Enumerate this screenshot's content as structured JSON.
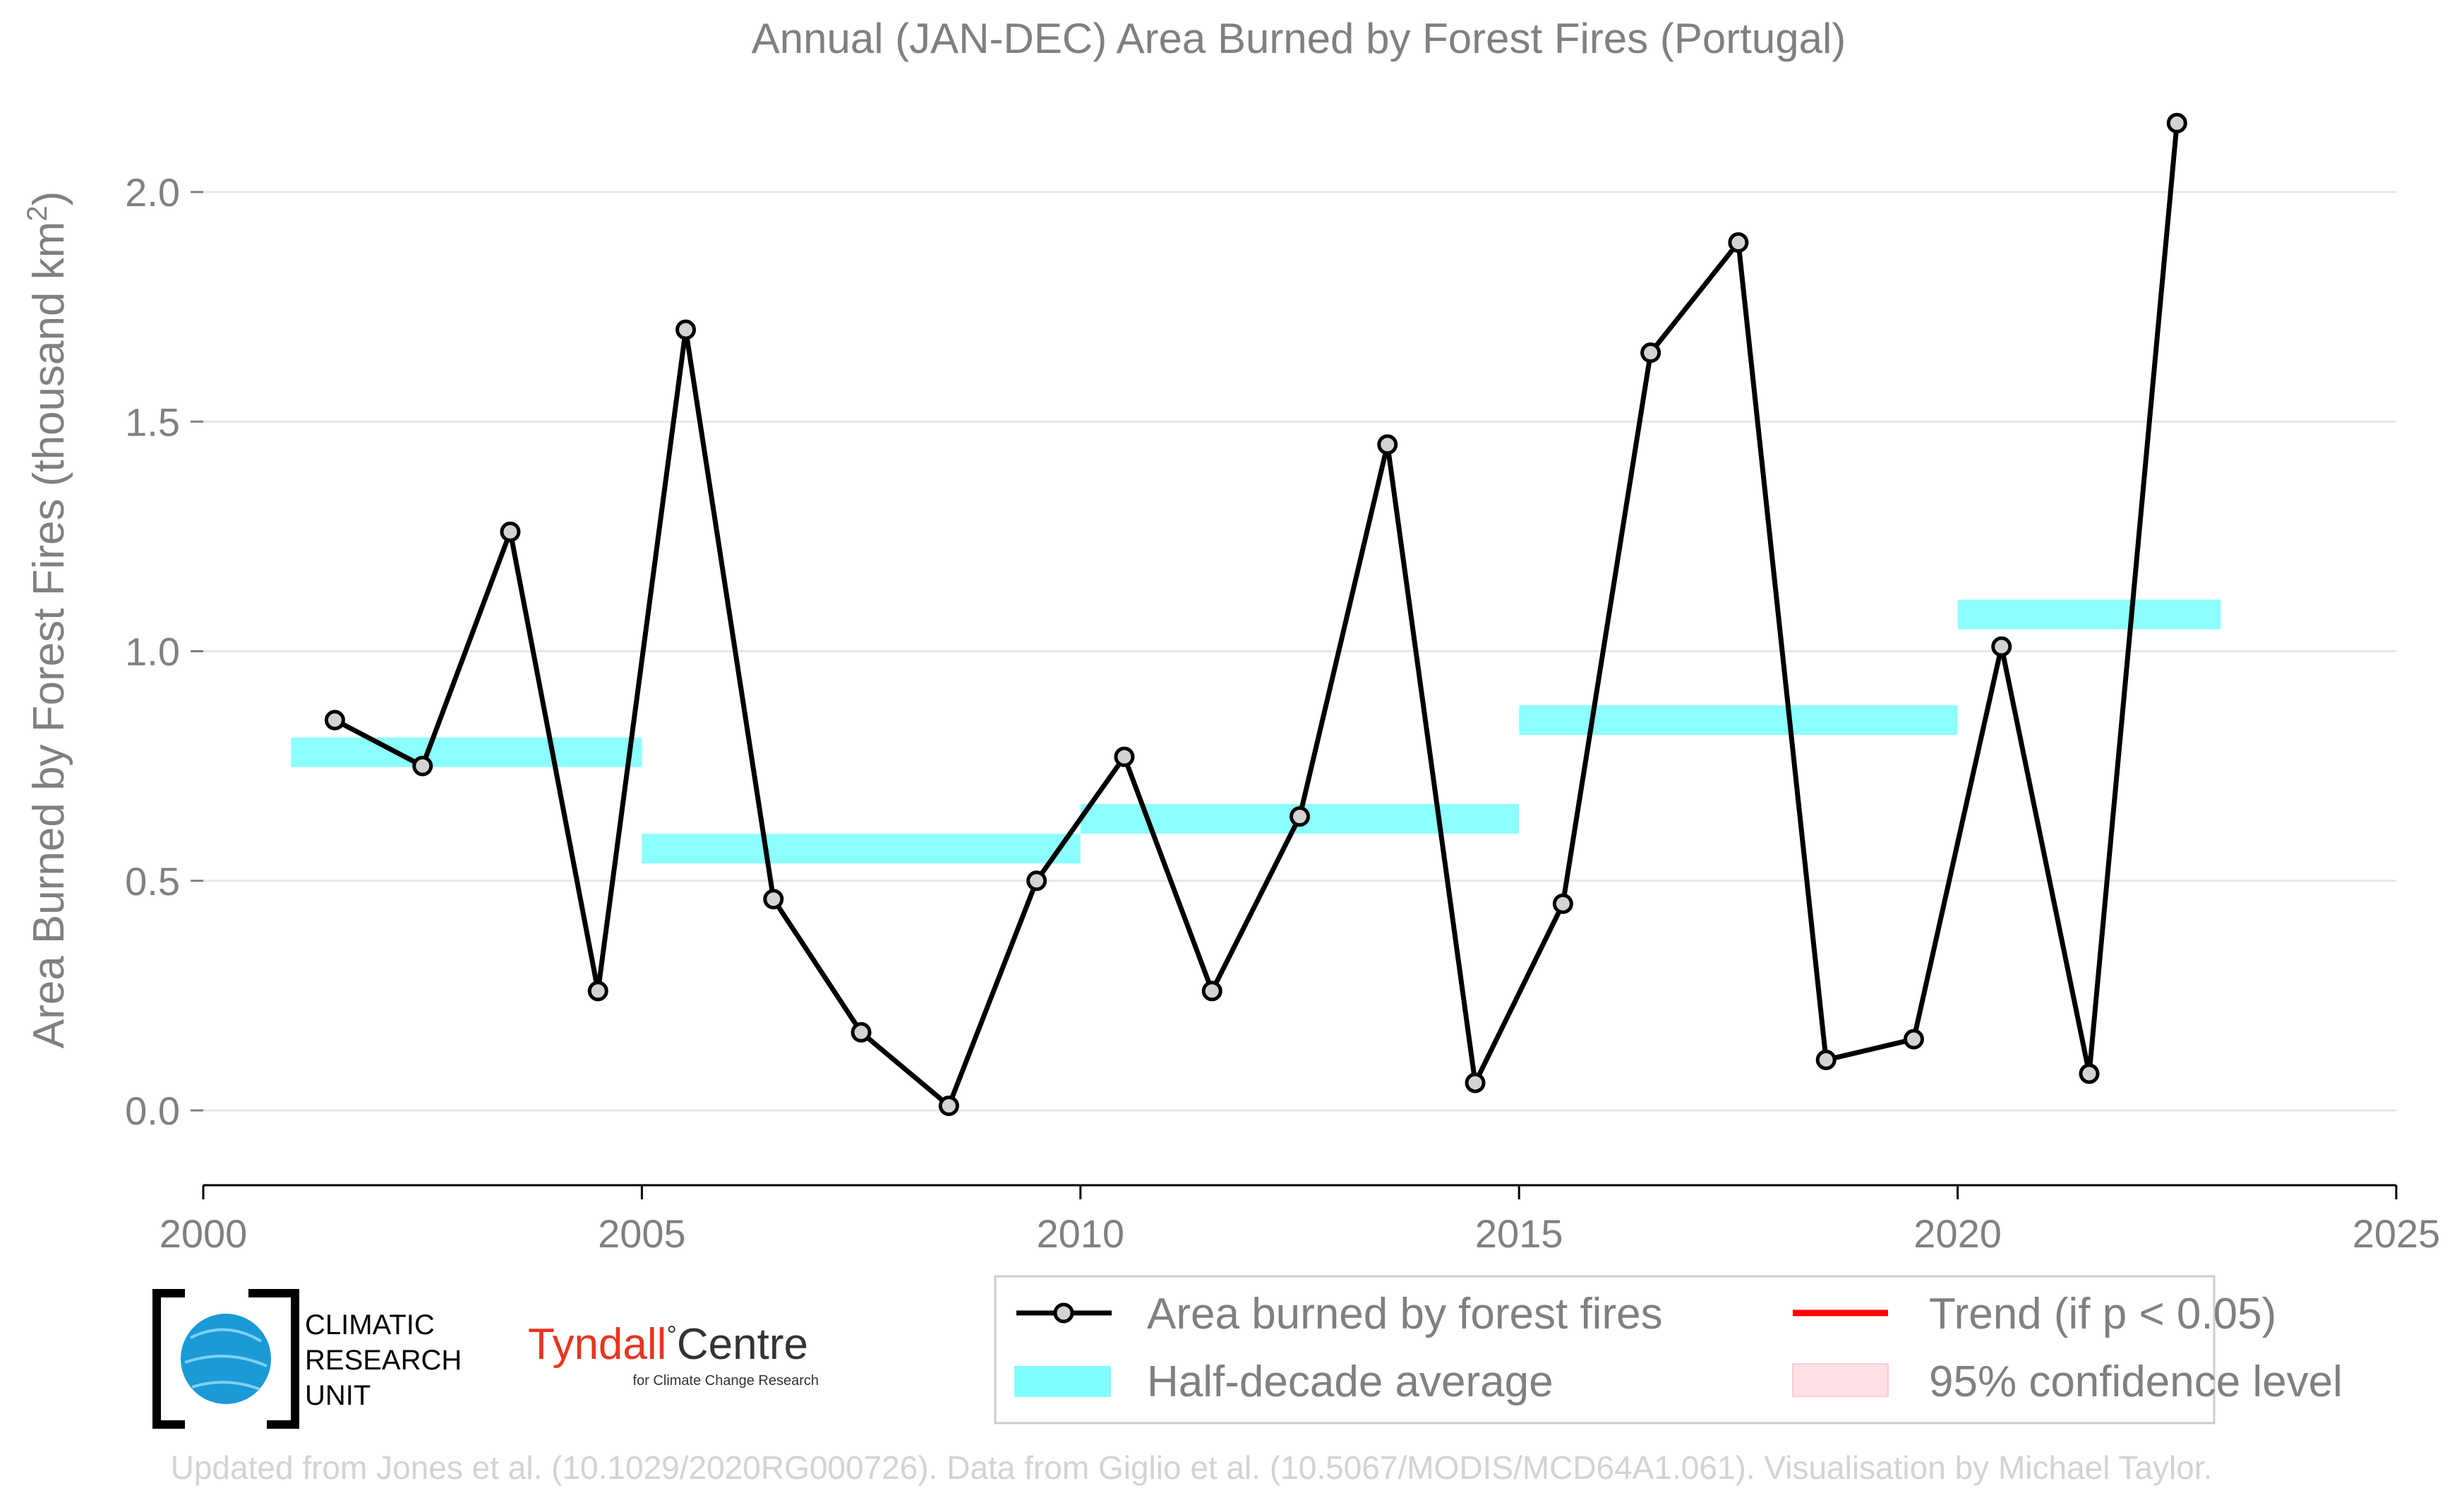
{
  "chart_data": {
    "type": "line",
    "title": "Annual (JAN-DEC) Area Burned by Forest Fires (Portugal)",
    "ylabel": "Area Burned by Forest Fires (thousand km",
    "ylabel_superscript": "2",
    "ylabel_suffix": ")",
    "xlabel": "",
    "xlim": [
      2000,
      2025
    ],
    "ylim": [
      -0.1,
      2.2
    ],
    "x_ticks": [
      2000,
      2005,
      2010,
      2015,
      2020,
      2025
    ],
    "x_tick_labels": [
      "2000",
      "2005",
      "2010",
      "2015",
      "2020",
      "2025"
    ],
    "y_ticks": [
      0.0,
      0.5,
      1.0,
      1.5,
      2.0
    ],
    "y_tick_labels": [
      "0.0",
      "0.5",
      "1.0",
      "1.5",
      "2.0"
    ],
    "grid": "horizontal",
    "series": [
      {
        "name": "Area burned by forest fires",
        "type": "line",
        "color": "#000000",
        "marker_fill": "#d3d3d3",
        "x": [
          2001.5,
          2002.5,
          2003.5,
          2004.5,
          2005.5,
          2006.5,
          2007.5,
          2008.5,
          2009.5,
          2010.5,
          2011.5,
          2012.5,
          2013.5,
          2014.5,
          2015.5,
          2016.5,
          2017.5,
          2018.5,
          2019.5,
          2020.5,
          2021.5,
          2022.5
        ],
        "values": [
          0.85,
          0.75,
          1.26,
          0.26,
          1.7,
          0.46,
          0.17,
          0.01,
          0.5,
          0.77,
          0.26,
          0.64,
          1.45,
          0.06,
          0.45,
          1.65,
          1.89,
          0.11,
          0.155,
          1.01,
          0.08,
          2.15
        ]
      }
    ],
    "half_decade_average": {
      "name": "Half-decade average",
      "color": "#80ffff",
      "segments": [
        {
          "start": 2001,
          "end": 2005,
          "value": 0.78
        },
        {
          "start": 2005,
          "end": 2010,
          "value": 0.57
        },
        {
          "start": 2010,
          "end": 2015,
          "value": 0.635
        },
        {
          "start": 2015,
          "end": 2020,
          "value": 0.85
        },
        {
          "start": 2020,
          "end": 2023,
          "value": 1.08
        }
      ]
    },
    "legend": {
      "placement": "bottom-right",
      "entries": [
        {
          "label": "Area burned by forest fires",
          "kind": "line-marker",
          "color": "#000000"
        },
        {
          "label": "Trend (if p < 0.05)",
          "kind": "line",
          "color": "#ff0000"
        },
        {
          "label": "Half-decade average",
          "kind": "band",
          "color": "#80ffff"
        },
        {
          "label": "95% confidence level",
          "kind": "patch",
          "color": "#ffe0e4"
        }
      ]
    }
  },
  "logos": {
    "cru_lines": [
      "CLIMATIC",
      "RESEARCH",
      "UNIT"
    ],
    "tyndall_name": "Tyndall",
    "tyndall_degree": "°",
    "tyndall_centre": "Centre",
    "tyndall_sub": "for Climate Change Research",
    "tyndall_color": "#e8351e",
    "cru_color": "#1a9ad6"
  },
  "credit": "Updated from Jones et al. (10.1029/2020RG000726). Data from Giglio et al. (10.5067/MODIS/MCD64A1.061). Visualisation by Michael Taylor."
}
